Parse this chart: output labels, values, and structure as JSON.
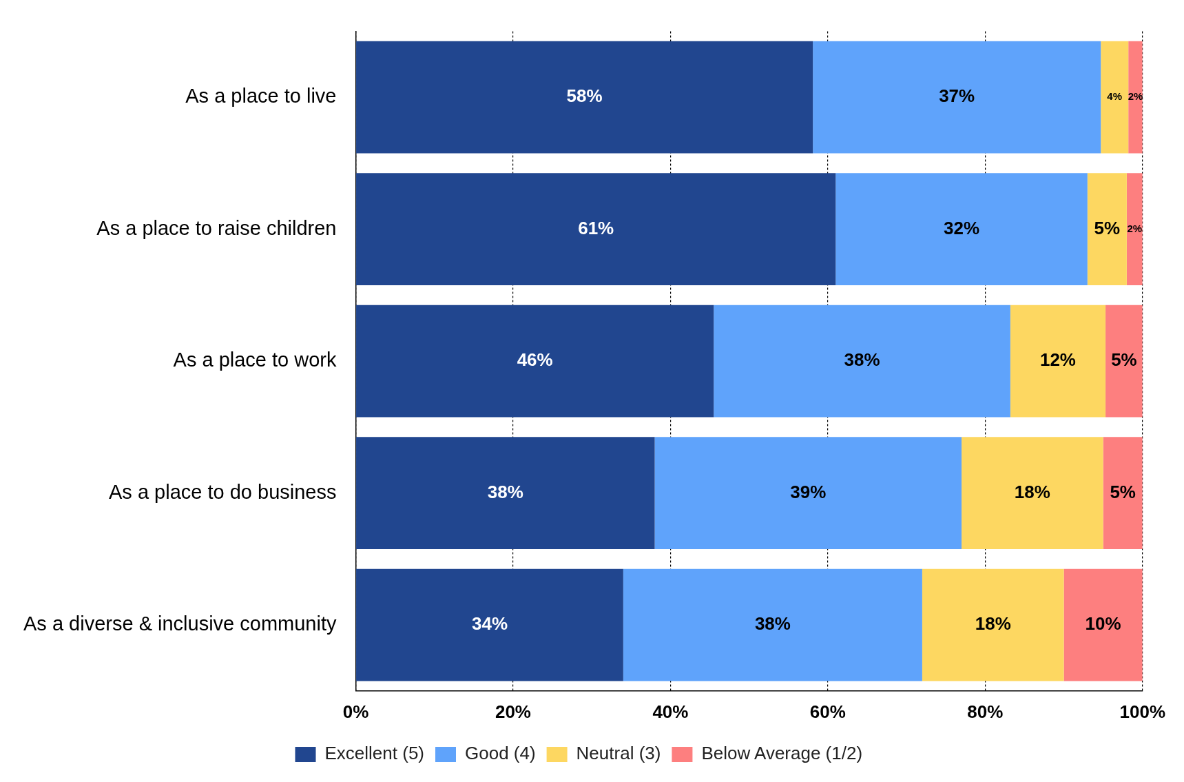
{
  "chart_data": {
    "type": "bar",
    "orientation": "horizontal",
    "stacked": true,
    "categories": [
      "As a place to live",
      "As a place to raise children",
      "As a place to work",
      "As a place to do business",
      "As a diverse & inclusive community"
    ],
    "series": [
      {
        "name": "Excellent (5)",
        "color": "#21468f",
        "values": [
          58.1,
          61,
          45.5,
          38,
          34
        ],
        "value_labels": [
          "58%",
          "61%",
          "46%",
          "38%",
          "34%"
        ]
      },
      {
        "name": "Good (4)",
        "color": "#5fa3fb",
        "values": [
          36.6,
          32,
          37.7,
          39,
          38
        ],
        "value_labels": [
          "37%",
          "32%",
          "38%",
          "39%",
          "38%"
        ]
      },
      {
        "name": "Neutral (3)",
        "color": "#fdd761",
        "values": [
          3.5,
          5,
          12.1,
          18,
          18
        ],
        "value_labels": [
          "4%",
          "5%",
          "12%",
          "18%",
          "18%"
        ]
      },
      {
        "name": "Below Average (1/2)",
        "color": "#fd7f7f",
        "values": [
          1.8,
          2,
          4.7,
          5,
          10
        ],
        "value_labels": [
          "2%",
          "2%",
          "5%",
          "5%",
          "10%"
        ]
      }
    ],
    "xlim": [
      0,
      100
    ],
    "xticks": [
      {
        "value": 0,
        "label": "0%"
      },
      {
        "value": 20,
        "label": "20%"
      },
      {
        "value": 40,
        "label": "40%"
      },
      {
        "value": 60,
        "label": "60%"
      },
      {
        "value": 80,
        "label": "80%"
      },
      {
        "value": 100,
        "label": "100%"
      }
    ],
    "grid": "x",
    "legend": "bottom"
  }
}
